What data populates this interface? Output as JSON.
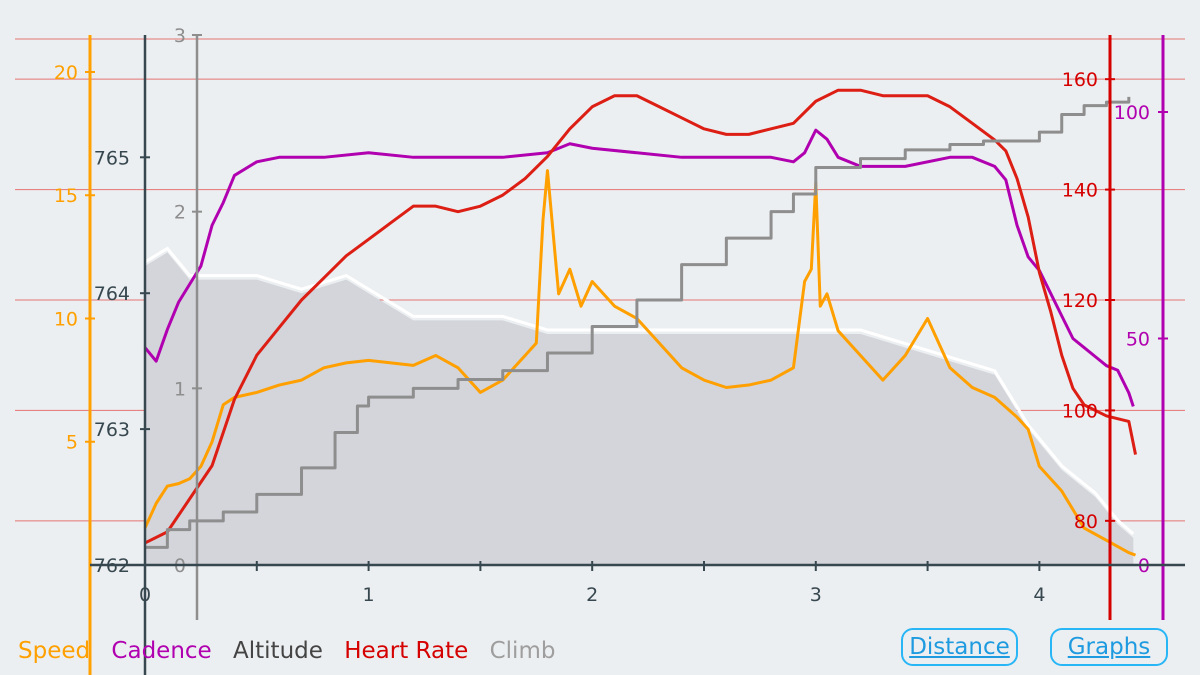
{
  "chart_data": {
    "type": "line",
    "x_ticks": [
      "0",
      "1",
      "2",
      "3",
      "4"
    ],
    "xlim": [
      0,
      4.45
    ],
    "axes": {
      "speed": {
        "ticks": [
          "5",
          "10",
          "15",
          "20"
        ],
        "range": [
          0,
          21.5
        ],
        "color": "#ffa000"
      },
      "altitude": {
        "ticks": [
          "762",
          "763",
          "764",
          "765"
        ],
        "range": [
          762,
          765.9
        ],
        "color": "#37474f"
      },
      "climb": {
        "ticks": [
          "0",
          "1",
          "2",
          "3"
        ],
        "range": [
          0,
          3
        ],
        "color": "#8e8e8e"
      },
      "heart_rate": {
        "ticks": [
          "80",
          "100",
          "120",
          "140",
          "160"
        ],
        "range": [
          72,
          168
        ],
        "color": "#d50000"
      },
      "cadence": {
        "ticks": [
          "0",
          "50",
          "100"
        ],
        "range": [
          0,
          117
        ],
        "color": "#b000b0"
      }
    },
    "series": [
      {
        "name": "Altitude",
        "axis": "altitude",
        "style": "area",
        "color": "#d3d5da",
        "x": [
          0,
          0.1,
          0.2,
          0.3,
          0.5,
          0.7,
          0.9,
          1.0,
          1.2,
          1.4,
          1.6,
          1.8,
          2.0,
          2.2,
          2.4,
          2.6,
          2.8,
          3.0,
          3.2,
          3.4,
          3.6,
          3.8,
          3.95,
          4.1,
          4.25,
          4.35,
          4.42
        ],
        "values": [
          764.2,
          764.3,
          764.1,
          764.1,
          764.1,
          764.0,
          764.1,
          764.0,
          763.8,
          763.8,
          763.8,
          763.7,
          763.7,
          763.7,
          763.7,
          763.7,
          763.7,
          763.7,
          763.7,
          763.6,
          763.5,
          763.4,
          763.0,
          762.7,
          762.5,
          762.3,
          762.2
        ]
      },
      {
        "name": "Speed",
        "axis": "speed",
        "color": "#ffa000",
        "x": [
          0,
          0.05,
          0.1,
          0.15,
          0.2,
          0.25,
          0.3,
          0.35,
          0.4,
          0.5,
          0.6,
          0.7,
          0.8,
          0.9,
          1.0,
          1.1,
          1.2,
          1.3,
          1.4,
          1.5,
          1.6,
          1.65,
          1.7,
          1.75,
          1.78,
          1.8,
          1.82,
          1.85,
          1.9,
          1.95,
          2.0,
          2.1,
          2.2,
          2.3,
          2.4,
          2.5,
          2.6,
          2.7,
          2.8,
          2.9,
          2.95,
          2.98,
          3.0,
          3.02,
          3.05,
          3.1,
          3.2,
          3.3,
          3.4,
          3.5,
          3.55,
          3.6,
          3.7,
          3.8,
          3.9,
          3.95,
          4.0,
          4.1,
          4.2,
          4.3,
          4.4,
          4.43
        ],
        "values": [
          1.5,
          2.5,
          3.2,
          3.3,
          3.5,
          4.0,
          5.0,
          6.5,
          6.8,
          7.0,
          7.3,
          7.5,
          8.0,
          8.2,
          8.3,
          8.2,
          8.1,
          8.5,
          8.0,
          7.0,
          7.5,
          8.0,
          8.5,
          9.0,
          14.0,
          16.0,
          14.0,
          11.0,
          12.0,
          10.5,
          11.5,
          10.5,
          10.0,
          9.0,
          8.0,
          7.5,
          7.2,
          7.3,
          7.5,
          8.0,
          11.5,
          12.0,
          15.5,
          10.5,
          11.0,
          9.5,
          8.5,
          7.5,
          8.5,
          10.0,
          9.0,
          8.0,
          7.2,
          6.8,
          6.0,
          5.5,
          4.0,
          3.0,
          1.5,
          1.0,
          0.5,
          0.4
        ]
      },
      {
        "name": "Cadence",
        "axis": "cadence",
        "color": "#b000b0",
        "x": [
          0,
          0.05,
          0.1,
          0.15,
          0.2,
          0.25,
          0.3,
          0.35,
          0.4,
          0.5,
          0.6,
          0.8,
          1.0,
          1.2,
          1.4,
          1.6,
          1.8,
          1.9,
          2.0,
          2.2,
          2.4,
          2.6,
          2.8,
          2.9,
          2.95,
          3.0,
          3.05,
          3.1,
          3.2,
          3.4,
          3.6,
          3.7,
          3.8,
          3.85,
          3.9,
          3.95,
          4.0,
          4.05,
          4.1,
          4.15,
          4.2,
          4.25,
          4.3,
          4.35,
          4.4,
          4.42
        ],
        "values": [
          48,
          45,
          52,
          58,
          62,
          66,
          75,
          80,
          86,
          89,
          90,
          90,
          91,
          90,
          90,
          90,
          91,
          93,
          92,
          91,
          90,
          90,
          90,
          89,
          91,
          96,
          94,
          90,
          88,
          88,
          90,
          90,
          88,
          85,
          75,
          68,
          65,
          60,
          55,
          50,
          48,
          46,
          44,
          43,
          38,
          35
        ]
      },
      {
        "name": "Heart Rate",
        "axis": "heart_rate",
        "color": "#dc1e14",
        "x": [
          0,
          0.1,
          0.2,
          0.3,
          0.35,
          0.4,
          0.5,
          0.6,
          0.7,
          0.8,
          0.9,
          1.0,
          1.1,
          1.2,
          1.3,
          1.4,
          1.5,
          1.6,
          1.7,
          1.8,
          1.9,
          2.0,
          2.1,
          2.2,
          2.3,
          2.4,
          2.5,
          2.6,
          2.7,
          2.8,
          2.9,
          3.0,
          3.1,
          3.2,
          3.3,
          3.4,
          3.5,
          3.6,
          3.7,
          3.8,
          3.85,
          3.9,
          3.95,
          4.0,
          4.05,
          4.1,
          4.15,
          4.2,
          4.3,
          4.4,
          4.43
        ],
        "values": [
          76,
          78,
          84,
          90,
          96,
          102,
          110,
          115,
          120,
          124,
          128,
          131,
          134,
          137,
          137,
          136,
          137,
          139,
          142,
          146,
          151,
          155,
          157,
          157,
          155,
          153,
          151,
          150,
          150,
          151,
          152,
          156,
          158,
          158,
          157,
          157,
          157,
          155,
          152,
          149,
          147,
          142,
          135,
          125,
          118,
          110,
          104,
          101,
          99,
          98,
          92
        ]
      },
      {
        "name": "Climb",
        "axis": "climb",
        "color": "#8e8e8e",
        "shape": "step",
        "x": [
          0,
          0.1,
          0.2,
          0.35,
          0.5,
          0.7,
          0.85,
          0.95,
          1.0,
          1.2,
          1.4,
          1.6,
          1.8,
          2.0,
          2.2,
          2.4,
          2.6,
          2.8,
          2.9,
          3.0,
          3.2,
          3.4,
          3.6,
          3.75,
          3.85,
          4.0,
          4.1,
          4.2,
          4.3,
          4.4
        ],
        "values": [
          0.1,
          0.2,
          0.25,
          0.3,
          0.4,
          0.55,
          0.75,
          0.9,
          0.95,
          1.0,
          1.05,
          1.1,
          1.2,
          1.35,
          1.5,
          1.7,
          1.85,
          2.0,
          2.1,
          2.25,
          2.3,
          2.35,
          2.38,
          2.4,
          2.4,
          2.45,
          2.55,
          2.6,
          2.62,
          2.65
        ]
      }
    ]
  },
  "legend": [
    {
      "label": "Speed",
      "color": "#ffa000"
    },
    {
      "label": "Cadence",
      "color": "#b000b0"
    },
    {
      "label": "Altitude",
      "color": "#444444"
    },
    {
      "label": "Heart Rate",
      "color": "#d50000"
    },
    {
      "label": "Climb",
      "color": "#9e9e9e"
    }
  ],
  "buttons": {
    "distance": "Distance",
    "graphs": "Graphs"
  }
}
